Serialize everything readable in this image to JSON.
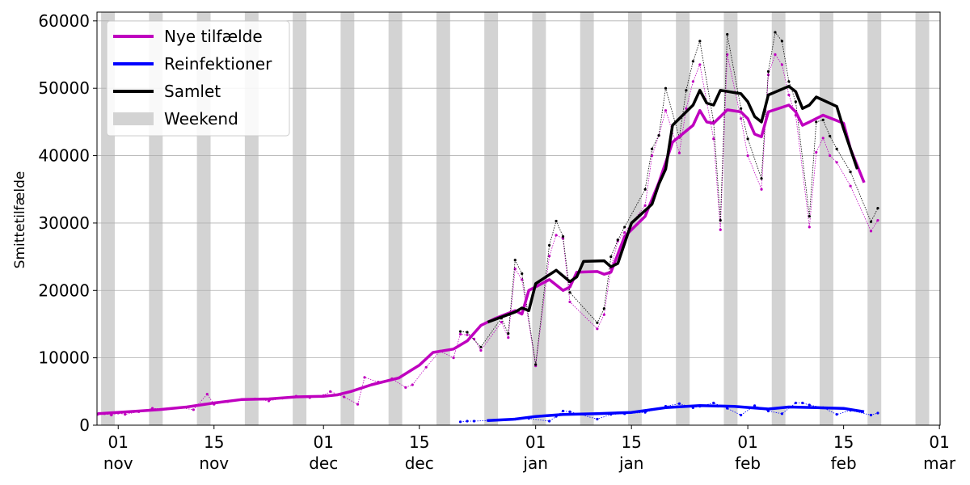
{
  "chart_data": {
    "type": "line",
    "ylabel": "Smittetilfælde",
    "xlim": [
      -3.1,
      120.1
    ],
    "ylim": [
      0,
      61300
    ],
    "xticks": [
      {
        "value": 0,
        "label": "01\nnov"
      },
      {
        "value": 14,
        "label": "15\nnov"
      },
      {
        "value": 30,
        "label": "01\ndec"
      },
      {
        "value": 44,
        "label": "15\ndec"
      },
      {
        "value": 61,
        "label": "01\njan"
      },
      {
        "value": 75,
        "label": "15\njan"
      },
      {
        "value": 92,
        "label": "01\nfeb"
      },
      {
        "value": 106,
        "label": "15\nfeb"
      },
      {
        "value": 120,
        "label": "01\nmar"
      }
    ],
    "yticks": [
      0,
      10000,
      20000,
      30000,
      40000,
      50000,
      60000
    ],
    "grid": true,
    "legend": "upper left",
    "weekend": {
      "name": "Weekend",
      "color": "#d3d3d3",
      "x": [
        -2,
        5,
        12,
        19,
        26,
        33,
        40,
        47,
        54,
        61,
        68,
        75,
        82,
        89,
        96,
        103,
        110,
        117
      ]
    },
    "series": [
      {
        "name": "Nye tilfælde",
        "color": "#bf00bf",
        "x": [
          -3,
          3,
          6,
          10,
          14,
          18,
          22,
          26,
          30,
          32,
          34,
          37,
          41,
          44,
          46,
          49,
          51,
          53,
          55,
          58,
          59,
          60,
          63,
          65,
          66,
          67,
          70,
          71,
          72,
          74,
          77,
          79,
          81,
          84,
          85,
          86,
          87,
          89,
          91,
          92,
          93,
          94,
          95,
          98,
          99,
          100,
          101,
          103,
          106,
          107,
          109
        ],
        "values": [
          1700,
          2100,
          2300,
          2700,
          3300,
          3800,
          3900,
          4200,
          4300,
          4500,
          5000,
          6000,
          7000,
          8900,
          10800,
          11300,
          12500,
          14800,
          15800,
          17000,
          16500,
          20000,
          21600,
          20000,
          20500,
          22700,
          22800,
          22400,
          22700,
          28000,
          31000,
          36000,
          42000,
          44500,
          46700,
          45000,
          44800,
          46800,
          46500,
          45500,
          43200,
          42800,
          46500,
          47500,
          46500,
          44500,
          45000,
          46000,
          44800,
          41000,
          36000
        ],
        "daily": {
          "x": [
            -3,
            -2,
            -1,
            0,
            1,
            3,
            5,
            7,
            9,
            11,
            13,
            14,
            16,
            18,
            20,
            22,
            24,
            26,
            28,
            30,
            31,
            33,
            35,
            36,
            38,
            40,
            42,
            43,
            45,
            47,
            49,
            50,
            51,
            52,
            53,
            56,
            57,
            58,
            59,
            61,
            63,
            64,
            65,
            66,
            70,
            71,
            72,
            73,
            74,
            77,
            78,
            79,
            80,
            82,
            83,
            84,
            85,
            87,
            88,
            89,
            91,
            92,
            94,
            95,
            96,
            97,
            98,
            99,
            101,
            102,
            103,
            104,
            105,
            107,
            110,
            111
          ],
          "values": [
            1600,
            1700,
            1500,
            1800,
            1600,
            2000,
            2500,
            2400,
            2600,
            2300,
            4600,
            3100,
            3500,
            3800,
            3900,
            3600,
            4000,
            4300,
            4100,
            4400,
            5000,
            4200,
            3100,
            7100,
            6400,
            6900,
            5600,
            6000,
            8600,
            11000,
            10000,
            13500,
            13400,
            12800,
            11100,
            15300,
            13000,
            23200,
            21600,
            8800,
            25100,
            28200,
            27700,
            18300,
            14300,
            16400,
            23300,
            27300,
            28600,
            32600,
            40000,
            43000,
            46700,
            40400,
            47000,
            51000,
            53500,
            42500,
            29000,
            55000,
            45500,
            40000,
            35000,
            52000,
            55000,
            53500,
            49000,
            46000,
            29400,
            40500,
            42600,
            40000,
            39000,
            35500,
            28800,
            30400
          ]
        }
      },
      {
        "name": "Reinfektioner",
        "color": "#0000ff",
        "x": [
          54,
          58,
          61,
          65,
          70,
          75,
          80,
          85,
          90,
          95,
          98,
          102,
          106,
          109
        ],
        "values": [
          700,
          900,
          1300,
          1600,
          1700,
          1900,
          2600,
          2900,
          2800,
          2400,
          2700,
          2600,
          2500,
          2000
        ],
        "daily": {
          "x": [
            50,
            51,
            52,
            54,
            58,
            60,
            63,
            64,
            65,
            66,
            70,
            72,
            74,
            77,
            80,
            82,
            84,
            85,
            87,
            89,
            91,
            93,
            95,
            97,
            99,
            100,
            101,
            103,
            105,
            107,
            110,
            111
          ],
          "values": [
            500,
            600,
            600,
            700,
            900,
            1000,
            600,
            1300,
            2100,
            2000,
            900,
            1600,
            1700,
            1900,
            2800,
            3200,
            2600,
            2800,
            3300,
            2500,
            1500,
            2900,
            2100,
            1700,
            3300,
            3300,
            3000,
            2600,
            1600,
            2200,
            1500,
            1800
          ]
        }
      },
      {
        "name": "Samlet",
        "color": "#000000",
        "x": [
          54,
          58,
          59,
          60,
          61,
          64,
          66,
          67,
          68,
          71,
          72,
          73,
          75,
          78,
          79,
          80,
          81,
          84,
          85,
          86,
          87,
          88,
          91,
          92,
          93,
          94,
          95,
          98,
          99,
          100,
          101,
          102,
          105,
          106,
          108
        ],
        "values": [
          15300,
          16800,
          17400,
          17000,
          21000,
          23000,
          21300,
          22000,
          24300,
          24400,
          23500,
          24000,
          30000,
          32800,
          35800,
          38000,
          44500,
          47500,
          49700,
          47800,
          47500,
          49700,
          49200,
          48000,
          45800,
          45000,
          49000,
          50300,
          49500,
          47000,
          47500,
          48700,
          47300,
          44000,
          38000
        ],
        "daily": {
          "x": [
            50,
            51,
            53,
            56,
            57,
            58,
            59,
            61,
            63,
            64,
            65,
            66,
            70,
            71,
            72,
            73,
            74,
            77,
            78,
            79,
            80,
            82,
            83,
            84,
            85,
            87,
            88,
            89,
            91,
            92,
            94,
            95,
            96,
            97,
            98,
            99,
            101,
            102,
            103,
            104,
            105,
            107,
            110,
            111
          ],
          "values": [
            13900,
            13800,
            11600,
            15900,
            13600,
            24500,
            22500,
            9000,
            26700,
            30300,
            28000,
            19700,
            15200,
            17300,
            25000,
            27500,
            29400,
            35000,
            41000,
            43000,
            50000,
            42700,
            49700,
            54000,
            57000,
            45000,
            30400,
            58000,
            47000,
            42500,
            36600,
            52500,
            58300,
            57000,
            51000,
            48000,
            31000,
            45000,
            45300,
            42900,
            41000,
            37600,
            30200,
            32200
          ]
        }
      }
    ]
  }
}
